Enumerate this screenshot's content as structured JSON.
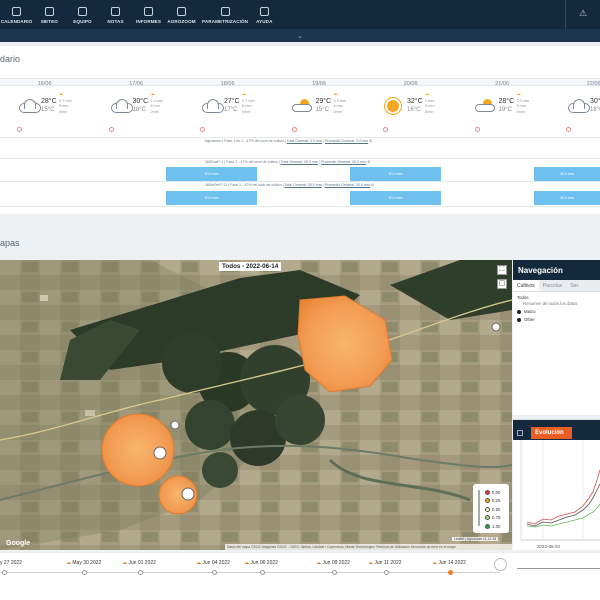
{
  "nav": {
    "items": [
      {
        "label": "CALENDARIO",
        "icon": "calendar-icon"
      },
      {
        "label": "METEO",
        "icon": "weather-icon"
      },
      {
        "label": "EQUIPO",
        "icon": "team-icon"
      },
      {
        "label": "NOTAS",
        "icon": "notes-icon"
      },
      {
        "label": "INFORMES",
        "icon": "reports-icon"
      },
      {
        "label": "AGROZOOM",
        "icon": "agrozoom-icon"
      },
      {
        "label": "PARAMETRIZACIÓN",
        "icon": "settings-icon"
      },
      {
        "label": "AYUDA",
        "icon": "help-icon"
      }
    ],
    "collapse_glyph": "⌄"
  },
  "calendar": {
    "title": "dario",
    "days": [
      "16/06",
      "17/06",
      "18/06",
      "19/06",
      "20/06",
      "21/06",
      "22/06"
    ],
    "weather": [
      {
        "icon": "cloud",
        "max": "28°C",
        "min": "15°C",
        "l1": "0.7 mm",
        "l2": "5 mm",
        "l3": "0mm"
      },
      {
        "icon": "cloud",
        "max": "30°C",
        "min": "18°C",
        "l1": "1.4 mm",
        "l2": "8 mm",
        "l3": "0mm"
      },
      {
        "icon": "cloud",
        "max": "27°C",
        "min": "17°C",
        "l1": "0.7 mm",
        "l2": "8 mm",
        "l3": "0mm"
      },
      {
        "icon": "suncloud",
        "max": "29°C",
        "min": "15°C",
        "l1": "0.3 mm",
        "l2": "4 mm",
        "l3": "0mm"
      },
      {
        "icon": "sun",
        "max": "32°C",
        "min": "16°C",
        "l1": "0 mm",
        "l2": "6 mm",
        "l3": "0mm"
      },
      {
        "icon": "suncloud",
        "max": "28°C",
        "min": "19°C",
        "l1": "0.3 mm",
        "l2": "5 mm",
        "l3": "0mm"
      },
      {
        "icon": "cloud",
        "max": "30°C",
        "min": "18°C",
        "l1": "1.4 mm",
        "l2": "5 mm",
        "l3": "0mm"
      }
    ],
    "bands": [
      {
        "text": "Agrozoom | Fase 1 en 1 - 47% del ciclo de cultivo |",
        "link1": "Total General: 0.0 mm",
        "link2": "Promedio General: 0.0 mm",
        "gear": "⚙"
      },
      {
        "text": "360DosFi 1 | Fase 1 - 47% del ciclo de cultivo |",
        "link1": "Total General: 30.0 mm",
        "link2": "Promedio General: 30.0 mm",
        "gear": "⚙"
      },
      {
        "text": "360mFerFi 11 | Fase 1 - 47% del ciclo de cultivo |",
        "link1": "Total General: 30.0 mm",
        "link2": "Promedio General: 30.0 mm",
        "gear": "⚙"
      }
    ],
    "cells": [
      "30.0 mm",
      "30.0 mm",
      "30.0 mm",
      "30.0 mm",
      "30.0 mm",
      "30.0 mm"
    ]
  },
  "map": {
    "title": "apas",
    "date_label": "Todos - 2022-06-14",
    "google": "Google",
    "attribution": "Datos del mapa ©2022 Imágenes ©2022 , CNES / Airbus, Landsat / Copernicus, Maxar Technologies   Términos de Utilización   Denunciar un error en el mapa",
    "leaflet": "Leaflet | Agrozoom v1.12.18",
    "legend": [
      {
        "value": "0.00",
        "color": "#e53935"
      },
      {
        "value": "0.25",
        "color": "#f5a623"
      },
      {
        "value": "0.50",
        "color": "#fff9c4"
      },
      {
        "value": "0.75",
        "color": "#a5d67a"
      },
      {
        "value": "1.00",
        "color": "#2e9e3e"
      }
    ]
  },
  "navigation": {
    "title": "Navegación",
    "tabs": [
      "Cultivos",
      "Parcelas",
      "Sec"
    ],
    "all": "Todos",
    "summary": "Resumen de todos los datos",
    "options": [
      "Maizo",
      "Other"
    ]
  },
  "evolution": {
    "title": "Evolución",
    "x_tick": "2022-05-02"
  },
  "timeline": {
    "labels": [
      "y 27 2022",
      "May 30 2022",
      "Jun 01 2022",
      "Jun 04 2022",
      "Jun 06 2022",
      "Jun 09 2022",
      "Jun 11 2022",
      "Jun 14 2022"
    ]
  }
}
